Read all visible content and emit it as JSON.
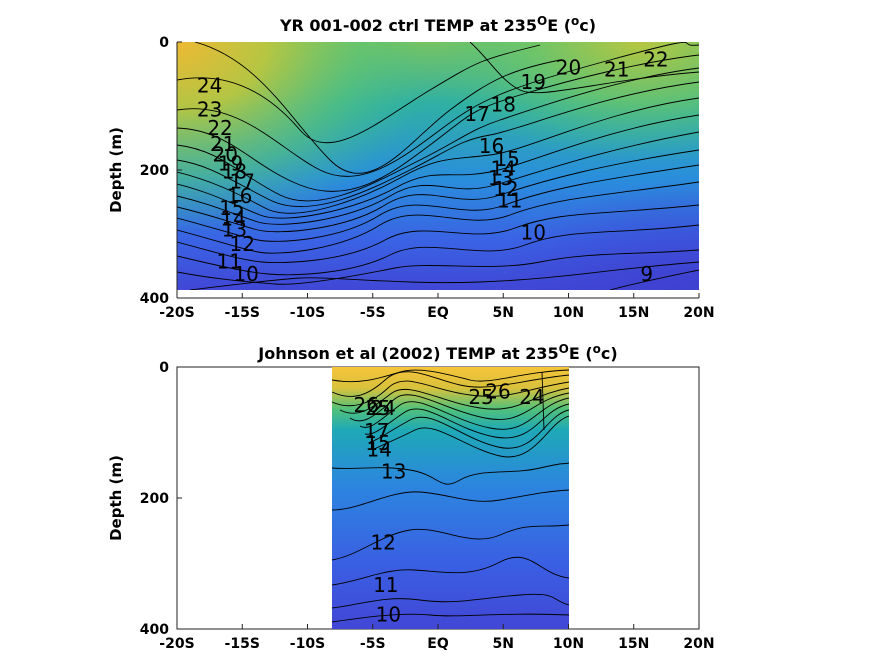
{
  "chart_data": [
    {
      "type": "contour",
      "title": "YR 001-002 ctrl TEMP at 235",
      "title_sup": "O",
      "title_end": "E (",
      "title_unit_sup": "o",
      "title_unit": "c)",
      "ylabel": "Depth (m)",
      "xlim": [
        -20,
        20
      ],
      "ylim": [
        0,
        400
      ],
      "y_reversed": true,
      "x_ticks": [
        -20,
        -15,
        -10,
        -5,
        0,
        5,
        10,
        15,
        20
      ],
      "x_tick_labels": [
        "-20S",
        "-15S",
        "-10S",
        "-5S",
        "EQ",
        "5N",
        "10N",
        "15N",
        "20N"
      ],
      "y_ticks": [
        0,
        200,
        400
      ],
      "y_tick_labels": [
        "0",
        "200",
        "400"
      ],
      "data_extent": {
        "x": [
          -20,
          20
        ],
        "depth": [
          0,
          385
        ]
      },
      "colormap": [
        "#3e48d6",
        "#3a6ce6",
        "#2b91d8",
        "#19b3b0",
        "#55c47c",
        "#a6c84a",
        "#e8b937"
      ],
      "contour_labels": [
        {
          "text": "24",
          "x": -17.5,
          "depth": 70
        },
        {
          "text": "23",
          "x": -17.5,
          "depth": 108
        },
        {
          "text": "22",
          "x": -16.7,
          "depth": 137
        },
        {
          "text": "21",
          "x": -16.5,
          "depth": 162
        },
        {
          "text": "20",
          "x": -16.3,
          "depth": 178
        },
        {
          "text": "19",
          "x": -15.9,
          "depth": 192
        },
        {
          "text": "18",
          "x": -15.6,
          "depth": 205
        },
        {
          "text": "17",
          "x": -15.0,
          "depth": 220
        },
        {
          "text": "16",
          "x": -15.2,
          "depth": 243
        },
        {
          "text": "15",
          "x": -15.8,
          "depth": 262
        },
        {
          "text": "14",
          "x": -15.7,
          "depth": 278
        },
        {
          "text": "13",
          "x": -15.6,
          "depth": 295
        },
        {
          "text": "12",
          "x": -15.0,
          "depth": 318
        },
        {
          "text": "11",
          "x": -16.0,
          "depth": 345
        },
        {
          "text": "10",
          "x": -14.7,
          "depth": 365
        },
        {
          "text": "22",
          "x": 16.7,
          "depth": 30
        },
        {
          "text": "21",
          "x": 13.7,
          "depth": 45
        },
        {
          "text": "20",
          "x": 10.0,
          "depth": 42
        },
        {
          "text": "19",
          "x": 7.3,
          "depth": 65
        },
        {
          "text": "18",
          "x": 5.0,
          "depth": 100
        },
        {
          "text": "17",
          "x": 3.0,
          "depth": 115
        },
        {
          "text": "16",
          "x": 4.1,
          "depth": 165
        },
        {
          "text": "15",
          "x": 5.3,
          "depth": 185
        },
        {
          "text": "14",
          "x": 5.0,
          "depth": 200
        },
        {
          "text": "13",
          "x": 4.8,
          "depth": 215
        },
        {
          "text": "12",
          "x": 5.2,
          "depth": 232
        },
        {
          "text": "11",
          "x": 5.5,
          "depth": 250
        },
        {
          "text": "10",
          "x": 7.3,
          "depth": 300
        },
        {
          "text": "9",
          "x": 16.0,
          "depth": 365
        }
      ]
    },
    {
      "type": "contour",
      "title": "Johnson et al (2002) TEMP at 235",
      "title_sup": "O",
      "title_end": "E (",
      "title_unit_sup": "o",
      "title_unit": "c)",
      "ylabel": "Depth (m)",
      "xlim": [
        -20,
        20
      ],
      "ylim": [
        0,
        400
      ],
      "y_reversed": true,
      "x_ticks": [
        -20,
        -15,
        -10,
        -5,
        0,
        5,
        10,
        15,
        20
      ],
      "x_tick_labels": [
        "-20S",
        "-15S",
        "-10S",
        "-5S",
        "EQ",
        "5N",
        "10N",
        "15N",
        "20N"
      ],
      "y_ticks": [
        0,
        200,
        400
      ],
      "y_tick_labels": [
        "0",
        "200",
        "400"
      ],
      "data_extent": {
        "x": [
          -8,
          10
        ],
        "depth": [
          0,
          400
        ]
      },
      "colormap": [
        "#3e48d6",
        "#3a6ce6",
        "#2b91d8",
        "#19b3b0",
        "#55c47c",
        "#a6c84a",
        "#f4c53a"
      ],
      "contour_labels": [
        {
          "text": "26",
          "x": -5.5,
          "depth": 60
        },
        {
          "text": "25",
          "x": -4.6,
          "depth": 65
        },
        {
          "text": "24",
          "x": -4.2,
          "depth": 65
        },
        {
          "text": "17",
          "x": -4.7,
          "depth": 100
        },
        {
          "text": "15",
          "x": -4.6,
          "depth": 118
        },
        {
          "text": "14",
          "x": -4.5,
          "depth": 128
        },
        {
          "text": "13",
          "x": -3.4,
          "depth": 162
        },
        {
          "text": "26",
          "x": 4.6,
          "depth": 40
        },
        {
          "text": "25",
          "x": 3.3,
          "depth": 48
        },
        {
          "text": "24",
          "x": 7.2,
          "depth": 48
        },
        {
          "text": "12",
          "x": -4.2,
          "depth": 270
        },
        {
          "text": "11",
          "x": -4.0,
          "depth": 335
        },
        {
          "text": "10",
          "x": -3.8,
          "depth": 380
        }
      ]
    }
  ]
}
